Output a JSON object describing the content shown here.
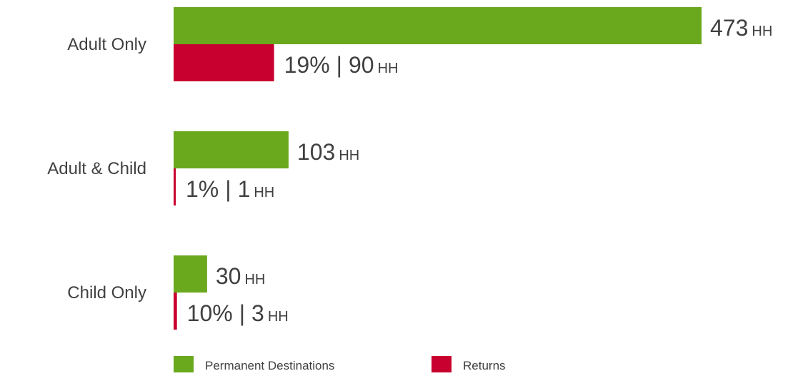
{
  "chart_data": {
    "type": "bar",
    "orientation": "horizontal",
    "categories": [
      "Adult Only",
      "Adult & Child",
      "Child Only"
    ],
    "series": [
      {
        "name": "Permanent Destinations",
        "color": "#6aa81e",
        "values": [
          473,
          103,
          30
        ],
        "labels": [
          "473",
          "103",
          "30"
        ],
        "unit": "HH"
      },
      {
        "name": "Returns",
        "color": "#c8002f",
        "values": [
          90,
          1,
          3
        ],
        "percent_labels": [
          "19%",
          "1%",
          "10%"
        ],
        "labels": [
          "90",
          "1",
          "3"
        ],
        "unit": "HH"
      }
    ],
    "xlim": [
      0,
      473
    ],
    "grid": false,
    "legend_position": "bottom"
  }
}
